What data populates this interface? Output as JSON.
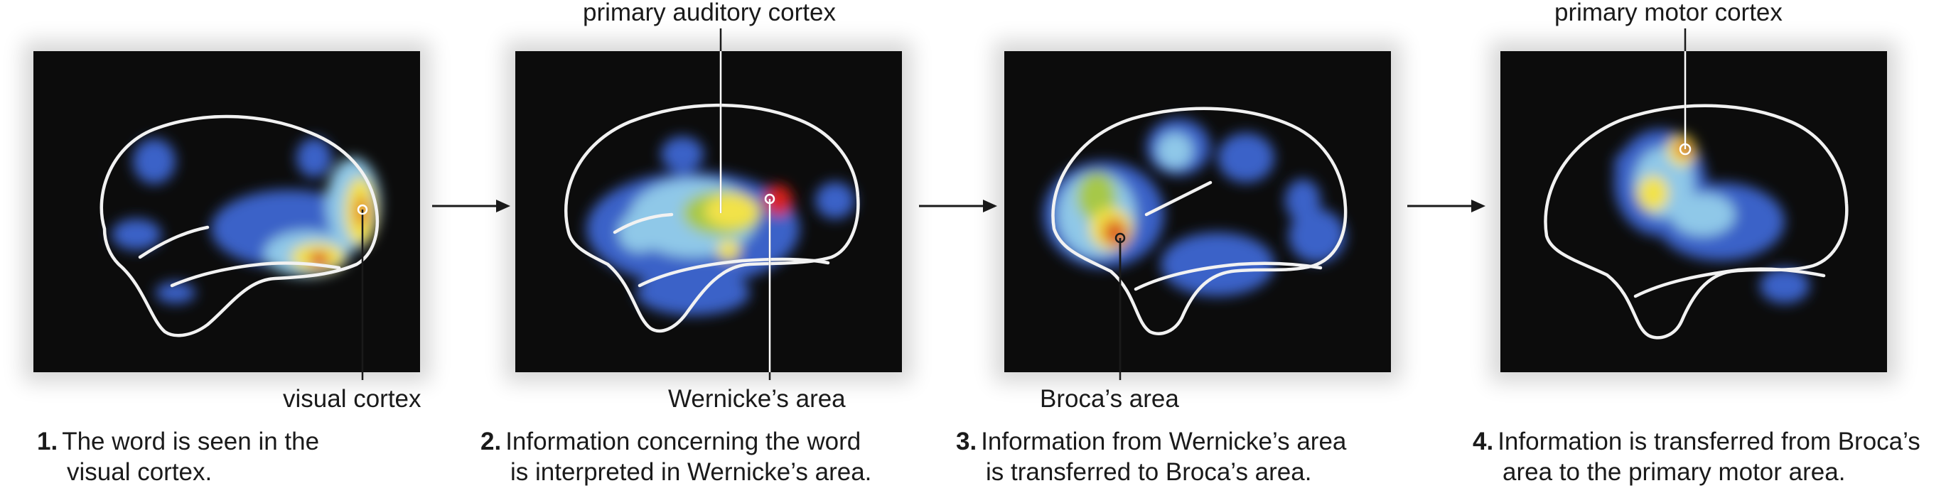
{
  "colors": {
    "background": "#ffffff",
    "scan_background": "#0c0c0c",
    "outline": "#f2f2f2",
    "activity_low": "#3a62c8",
    "activity_mid": "#8fc8e8",
    "activity_high": "#f2e24a",
    "activity_peak": "#d8241c"
  },
  "panels": [
    {
      "label": "visual cortex",
      "caption_number": "1.",
      "caption_line1": "The word is seen in the",
      "caption_line2": "visual cortex."
    },
    {
      "label": "primary auditory cortex",
      "label2": "Wernicke’s area",
      "caption_number": "2.",
      "caption_line1": "Information concerning the word",
      "caption_line2": "is interpreted in Wernicke’s area."
    },
    {
      "label": "Broca’s area",
      "caption_number": "3.",
      "caption_line1": "Information from Wernicke’s area",
      "caption_line2": "is transferred to Broca’s area."
    },
    {
      "label": "primary motor cortex",
      "caption_number": "4.",
      "caption_line1": "Information is transferred from Broca’s",
      "caption_line2": "area to the primary motor area."
    }
  ],
  "arrows": [
    "arrow-right",
    "arrow-right",
    "arrow-right"
  ]
}
